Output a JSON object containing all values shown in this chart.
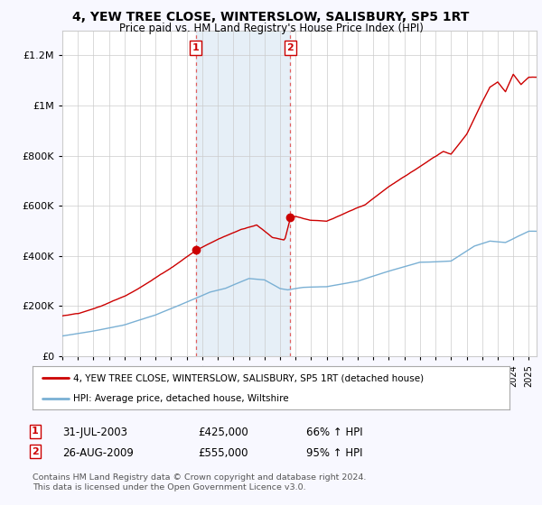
{
  "title": "4, YEW TREE CLOSE, WINTERSLOW, SALISBURY, SP5 1RT",
  "subtitle": "Price paid vs. HM Land Registry's House Price Index (HPI)",
  "red_label": "4, YEW TREE CLOSE, WINTERSLOW, SALISBURY, SP5 1RT (detached house)",
  "blue_label": "HPI: Average price, detached house, Wiltshire",
  "purchase1_date": "31-JUL-2003",
  "purchase1_price": 425000,
  "purchase1_hpi": "66% ↑ HPI",
  "purchase1_year": 2003.58,
  "purchase2_date": "26-AUG-2009",
  "purchase2_price": 555000,
  "purchase2_hpi": "95% ↑ HPI",
  "purchase2_year": 2009.65,
  "footer": "Contains HM Land Registry data © Crown copyright and database right 2024.\nThis data is licensed under the Open Government Licence v3.0.",
  "bg_color": "#f8f8ff",
  "plot_bg": "#ffffff",
  "shade_color": "#dce9f5",
  "red_color": "#cc0000",
  "blue_color": "#7ab0d4",
  "ylim_max": 1300000,
  "xmin": 1995.0,
  "xmax": 2025.5
}
